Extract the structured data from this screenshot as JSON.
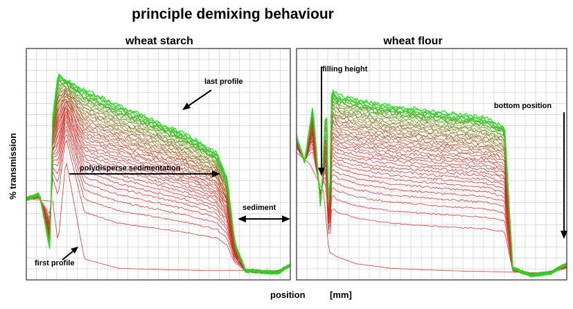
{
  "chart_data": {
    "type": "line",
    "title": "principle demixing behaviour",
    "xlabel": "position",
    "xunit": "[mm]",
    "ylabel": "% transmission",
    "grid": true,
    "colors": {
      "first": "#e02020",
      "last": "#22dd22",
      "frame": "#555555",
      "grid": "#c8c8c8"
    },
    "panels": [
      {
        "name": "wheat starch",
        "profile_count": 40,
        "first_profile": {
          "x": [
            0,
            0.1,
            0.12,
            0.15,
            0.22,
            0.35,
            0.5,
            0.7,
            0.85,
            0.95,
            1.0
          ],
          "y": [
            0.35,
            0.34,
            0.16,
            0.52,
            0.09,
            0.05,
            0.045,
            0.04,
            0.04,
            0.04,
            0.06
          ]
        },
        "last_profile": {
          "x": [
            0,
            0.05,
            0.09,
            0.1,
            0.12,
            0.2,
            0.4,
            0.6,
            0.72,
            0.76,
            0.79,
            0.83,
            0.95,
            1.0
          ],
          "y": [
            0.35,
            0.37,
            0.13,
            0.7,
            0.89,
            0.83,
            0.73,
            0.63,
            0.55,
            0.44,
            0.16,
            0.04,
            0.03,
            0.065
          ]
        },
        "annotations": [
          {
            "text": "last profile"
          },
          {
            "text": "polydisperse sedimentation"
          },
          {
            "text": "sediment"
          },
          {
            "text": "first profile"
          }
        ]
      },
      {
        "name": "wheat flour",
        "profile_count": 40,
        "first_profile": {
          "x": [
            0,
            0.05,
            0.1,
            0.12,
            0.15,
            0.22,
            0.35,
            0.55,
            0.75,
            0.9,
            0.96,
            1.0
          ],
          "y": [
            0.55,
            0.5,
            0.38,
            0.12,
            0.1,
            0.07,
            0.05,
            0.04,
            0.035,
            0.03,
            0.04,
            0.05
          ]
        },
        "last_profile": {
          "x": [
            0,
            0.03,
            0.06,
            0.09,
            0.11,
            0.12,
            0.13,
            0.15,
            0.3,
            0.5,
            0.7,
            0.77,
            0.8,
            0.87,
            0.94,
            1.0
          ],
          "y": [
            0.62,
            0.51,
            0.75,
            0.3,
            0.8,
            0.2,
            0.83,
            0.8,
            0.76,
            0.73,
            0.7,
            0.66,
            0.05,
            0.02,
            0.03,
            0.07
          ]
        },
        "annotations": [
          {
            "text": "filling height"
          },
          {
            "text": "bottom position"
          }
        ]
      }
    ]
  }
}
